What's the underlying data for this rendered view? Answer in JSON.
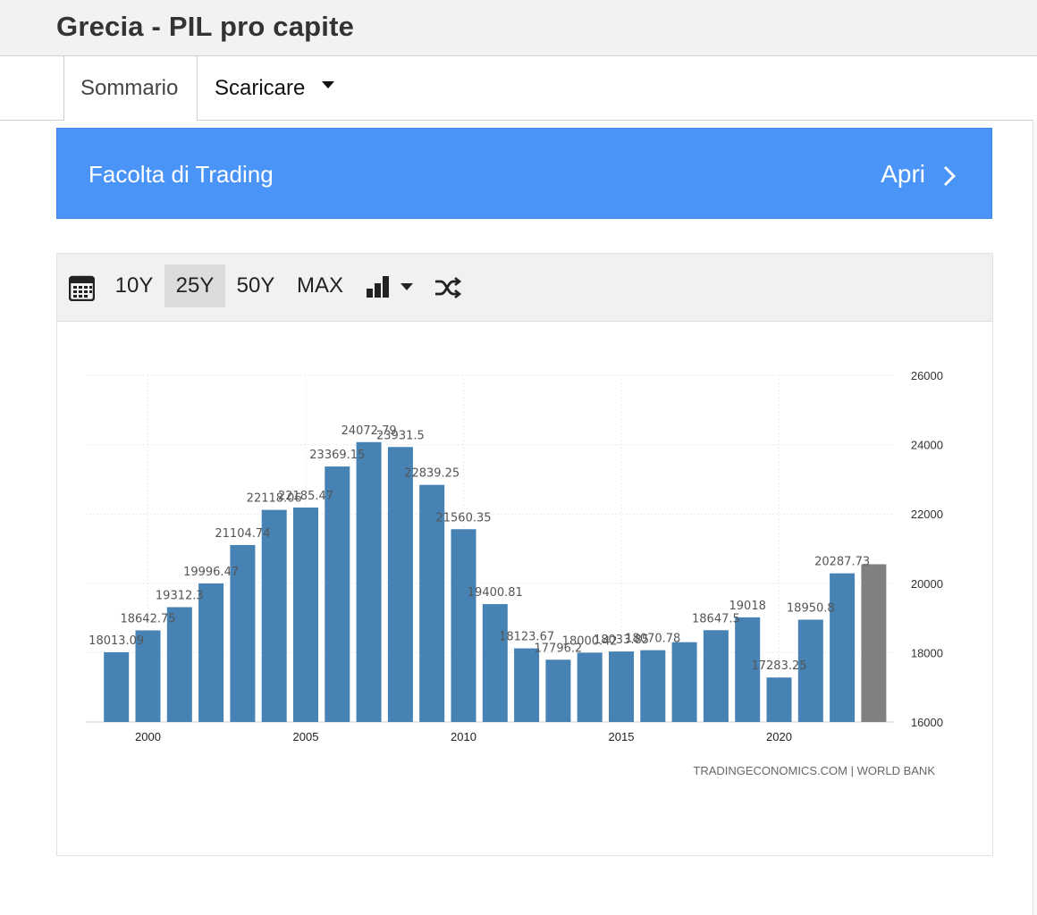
{
  "header": {
    "title": "Grecia - PIL pro capite"
  },
  "tabs": {
    "summary": "Sommario",
    "download": "Scaricare"
  },
  "banner": {
    "label": "Facolta di Trading",
    "action": "Apri"
  },
  "toolbar": {
    "ranges": [
      "10Y",
      "25Y",
      "50Y",
      "MAX"
    ],
    "active_range": "25Y",
    "icons": [
      "calendar-icon",
      "bar-chart-icon",
      "chevron-down-icon",
      "shuffle-icon"
    ]
  },
  "colors": {
    "bar": "#4682b4",
    "forecast_bar": "#808080",
    "banner": "#4a94f7"
  },
  "chart_data": {
    "type": "bar",
    "x": [
      1999,
      2000,
      2001,
      2002,
      2003,
      2004,
      2005,
      2006,
      2007,
      2008,
      2009,
      2010,
      2011,
      2012,
      2013,
      2014,
      2015,
      2016,
      2017,
      2018,
      2019,
      2020,
      2021,
      2022,
      2023
    ],
    "values": [
      18013.09,
      18642.75,
      19312.3,
      19996.47,
      21104.74,
      22118.06,
      22185.47,
      23369.15,
      24072.79,
      23931.5,
      22839.25,
      21560.35,
      19400.81,
      18123.67,
      17796.2,
      18000.42,
      18033.85,
      18070.78,
      18301.35,
      18647.5,
      19018,
      17283.25,
      18950.8,
      20287.73,
      20550
    ],
    "data_labels": [
      "18013.09",
      "18642.75",
      "19312.3",
      "19996.47",
      "21104.74",
      "22118.06",
      "22185.47",
      "23369.15",
      "24072.79",
      "23931.5",
      "22839.25",
      "21560.35",
      "19400.81",
      "18123.67",
      "17796.2",
      "18000.42",
      "18033.85",
      "18070.78",
      "",
      "18647.5",
      "19018",
      "17283.25",
      "18950.8",
      "20287.73",
      ""
    ],
    "xticks": [
      2000,
      2005,
      2010,
      2015,
      2020
    ],
    "yticks": [
      16000,
      18000,
      20000,
      22000,
      24000,
      26000
    ],
    "ylim": [
      16000,
      26000
    ],
    "y_axis_position": "right",
    "grid": true,
    "forecast_last": true,
    "source": "TRADINGECONOMICS.COM | WORLD BANK"
  }
}
